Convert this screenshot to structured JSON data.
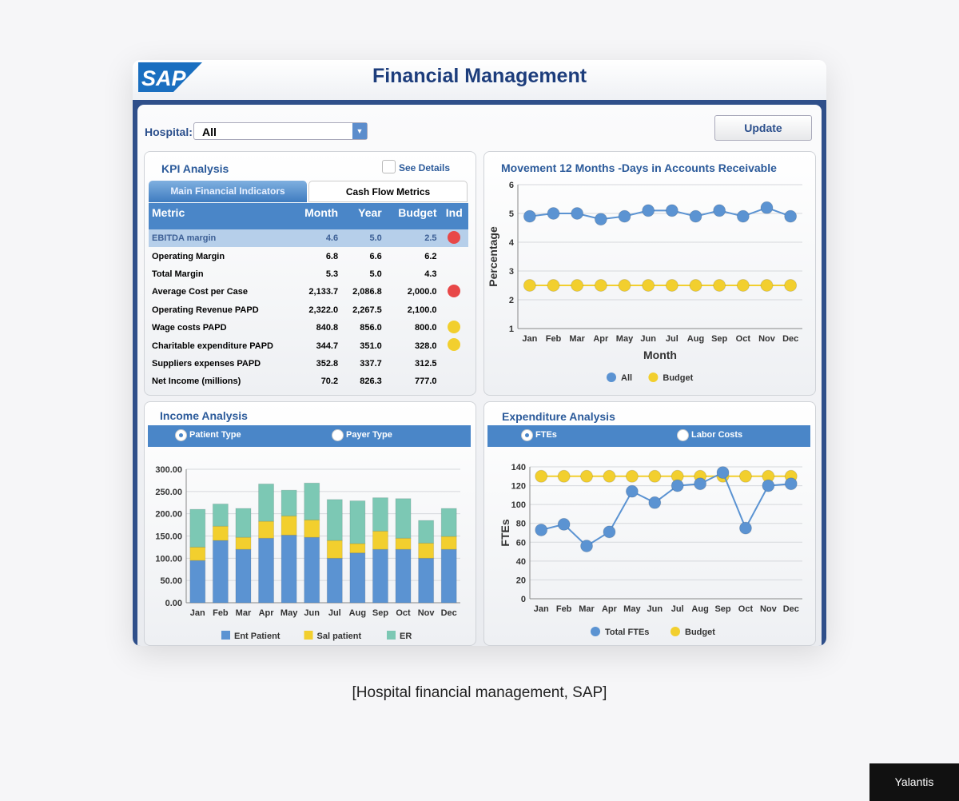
{
  "header": {
    "logo": "SAP",
    "title": "Financial Management"
  },
  "filter": {
    "label": "Hospital:",
    "value": "All",
    "update_label": "Update"
  },
  "kpi": {
    "title": "KPI Analysis",
    "see_details": "See Details",
    "tabs": [
      "Main Financial Indicators",
      "Cash Flow Metrics"
    ],
    "columns": [
      "Metric",
      "Month",
      "Year",
      "Budget",
      "Ind"
    ],
    "rows": [
      {
        "metric": "EBITDA margin",
        "month": "4.6",
        "year": "5.0",
        "budget": "2.5",
        "ind": "red"
      },
      {
        "metric": "Operating Margin",
        "month": "6.8",
        "year": "6.6",
        "budget": "6.2",
        "ind": ""
      },
      {
        "metric": "Total Margin",
        "month": "5.3",
        "year": "5.0",
        "budget": "4.3",
        "ind": ""
      },
      {
        "metric": "Average Cost per Case",
        "month": "2,133.7",
        "year": "2,086.8",
        "budget": "2,000.0",
        "ind": "red"
      },
      {
        "metric": "Operating Revenue PAPD",
        "month": "2,322.0",
        "year": "2,267.5",
        "budget": "2,100.0",
        "ind": ""
      },
      {
        "metric": "Wage costs PAPD",
        "month": "840.8",
        "year": "856.0",
        "budget": "800.0",
        "ind": "yellow"
      },
      {
        "metric": "Charitable expenditure PAPD",
        "month": "344.7",
        "year": "351.0",
        "budget": "328.0",
        "ind": "yellow"
      },
      {
        "metric": "Suppliers expenses PAPD",
        "month": "352.8",
        "year": "337.7",
        "budget": "312.5",
        "ind": ""
      },
      {
        "metric": "Net Income (millions)",
        "month": "70.2",
        "year": "826.3",
        "budget": "777.0",
        "ind": ""
      }
    ]
  },
  "income": {
    "title": "Income Analysis",
    "radios": [
      "Patient Type",
      "Payer Type"
    ]
  },
  "expenditure": {
    "title": "Expenditure Analysis",
    "radios": [
      "FTEs",
      "Labor Costs"
    ]
  },
  "colors": {
    "blue": "#5b93d2",
    "yellow": "#f2cf2e",
    "teal": "#7cc8b4",
    "red": "#e84848"
  },
  "chart_data": [
    {
      "type": "line",
      "title": "Movement 12 Months -Days in Accounts Receivable",
      "xlabel": "Month",
      "ylabel": "Percentage",
      "ylim": [
        1,
        6
      ],
      "yticks": [
        "1",
        "2",
        "3",
        "4",
        "5",
        "6"
      ],
      "categories": [
        "Jan",
        "Feb",
        "Mar",
        "Apr",
        "May",
        "Jun",
        "Jul",
        "Aug",
        "Sep",
        "Oct",
        "Nov",
        "Dec"
      ],
      "series": [
        {
          "name": "All",
          "values": [
            4.9,
            5.0,
            5.0,
            4.8,
            4.9,
            5.1,
            5.1,
            4.9,
            5.1,
            4.9,
            5.2,
            4.9
          ]
        },
        {
          "name": "Budget",
          "values": [
            2.5,
            2.5,
            2.5,
            2.5,
            2.5,
            2.5,
            2.5,
            2.5,
            2.5,
            2.5,
            2.5,
            2.5
          ]
        }
      ],
      "legend": "bottom"
    },
    {
      "type": "bar",
      "stacked": true,
      "title": "Income Analysis",
      "ylim": [
        0,
        300
      ],
      "yticks": [
        "0.00",
        "50.00",
        "100.00",
        "150.00",
        "200.00",
        "250.00",
        "300.00"
      ],
      "categories": [
        "Jan",
        "Feb",
        "Mar",
        "Apr",
        "May",
        "Jun",
        "Jul",
        "Aug",
        "Sep",
        "Oct",
        "Nov",
        "Dec"
      ],
      "series": [
        {
          "name": "Ent Patient",
          "values": [
            95,
            140,
            120,
            145,
            152,
            147,
            100,
            112,
            120,
            120,
            100,
            120
          ]
        },
        {
          "name": "Sal patient",
          "values": [
            30,
            32,
            27,
            38,
            43,
            39,
            40,
            21,
            41,
            25,
            34,
            29
          ]
        },
        {
          "name": "ER",
          "values": [
            85,
            50,
            65,
            84,
            58,
            83,
            92,
            96,
            75,
            89,
            51,
            63
          ]
        }
      ],
      "legend": "bottom"
    },
    {
      "type": "line",
      "title": "Expenditure Analysis",
      "ylabel": "FTEs",
      "ylim": [
        0,
        140
      ],
      "yticks": [
        "0",
        "20",
        "40",
        "60",
        "80",
        "100",
        "120",
        "140"
      ],
      "categories": [
        "Jan",
        "Feb",
        "Mar",
        "Apr",
        "May",
        "Jun",
        "Jul",
        "Aug",
        "Sep",
        "Oct",
        "Nov",
        "Dec"
      ],
      "series": [
        {
          "name": "Total FTEs",
          "values": [
            73,
            79,
            56,
            71,
            114,
            102,
            120,
            122,
            134,
            75,
            120,
            122
          ]
        },
        {
          "name": "Budget",
          "values": [
            130,
            130,
            130,
            130,
            130,
            130,
            130,
            130,
            130,
            130,
            130,
            130
          ]
        }
      ],
      "legend": "bottom"
    }
  ],
  "caption": "[Hospital financial management, SAP]",
  "badge": "Yalantis"
}
